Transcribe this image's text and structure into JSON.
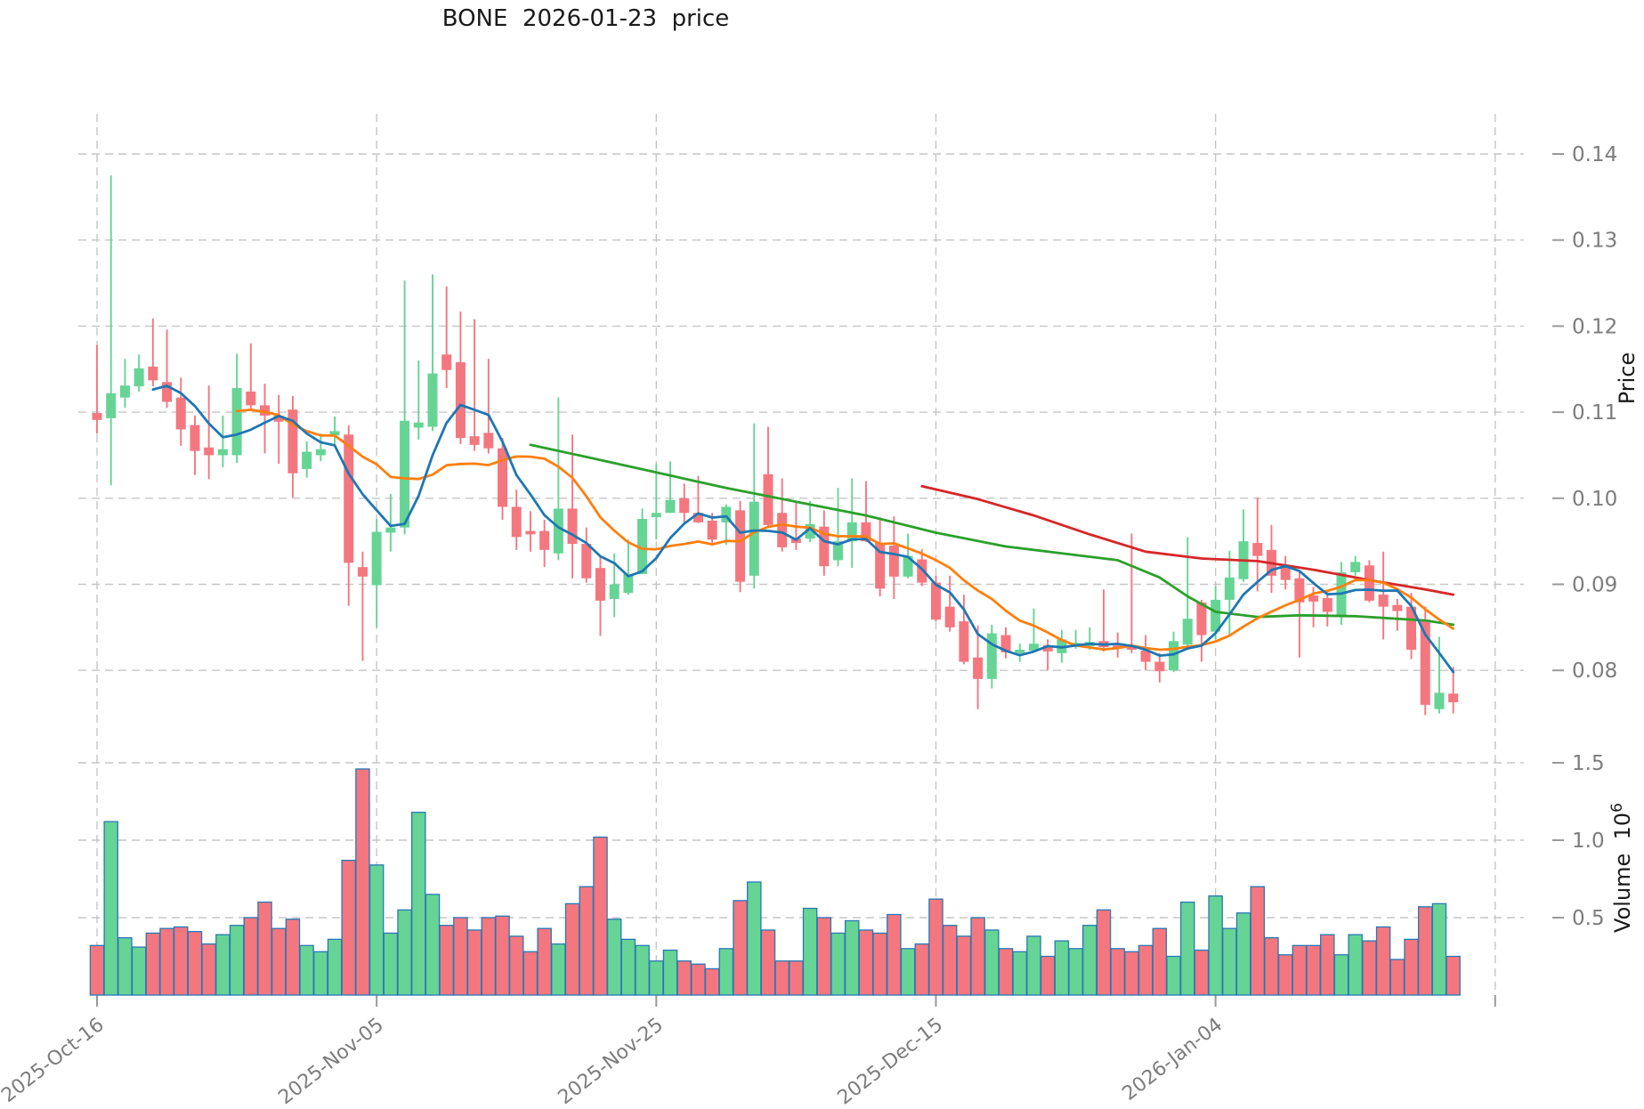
{
  "title": "BONE  2026-01-23  price",
  "axes": {
    "price_label": "Price",
    "volume_label_base": "Volume  10",
    "volume_label_exponent": "6",
    "price_ticks": [
      {
        "value": 0.14,
        "label": "0.14"
      },
      {
        "value": 0.13,
        "label": "0.13"
      },
      {
        "value": 0.12,
        "label": "0.12"
      },
      {
        "value": 0.11,
        "label": "0.11"
      },
      {
        "value": 0.1,
        "label": "0.10"
      },
      {
        "value": 0.09,
        "label": "0.09"
      },
      {
        "value": 0.08,
        "label": "0.08"
      }
    ],
    "volume_ticks": [
      {
        "value": 1.5,
        "label": "1.5"
      },
      {
        "value": 1.0,
        "label": "1.0"
      },
      {
        "value": 0.5,
        "label": "0.5"
      }
    ],
    "x_ticks": [
      {
        "index": 0,
        "label": "2025-Oct-16"
      },
      {
        "index": 20,
        "label": "2025-Nov-05"
      },
      {
        "index": 40,
        "label": "2025-Nov-25"
      },
      {
        "index": 60,
        "label": "2025-Dec-15"
      },
      {
        "index": 80,
        "label": "2026-Jan-04"
      },
      {
        "index": 100,
        "label": ""
      }
    ]
  },
  "colors": {
    "up": "#66d495",
    "down": "#f4777f",
    "volume_edge": "#2878b5",
    "ma_short": "#1f77b4",
    "ma_mid": "#ff7f0e",
    "ma_long": "#2ca02c",
    "ma_xlong": "#d62728",
    "grid": "#c6c6c6",
    "tick": "#9a9a9a",
    "tick_label": "#7c7c7c",
    "title": "#1a1a1a"
  },
  "chart_data": {
    "type": "candlestick",
    "panels": [
      "price",
      "volume"
    ],
    "grid": true,
    "price_ylim": [
      0.0736,
      0.145
    ],
    "volume_ylim": [
      0,
      1.6
    ],
    "volume_unit": "1e6",
    "n_bars": 98,
    "ohlc": {
      "open": [
        0.1099,
        0.1093,
        0.1117,
        0.113,
        0.1153,
        0.1135,
        0.1117,
        0.1085,
        0.1059,
        0.105,
        0.105,
        0.1124,
        0.1108,
        0.1096,
        0.1103,
        0.1034,
        0.105,
        0.1073,
        0.1074,
        0.092,
        0.0899,
        0.096,
        0.0966,
        0.1082,
        0.1083,
        0.1167,
        0.1158,
        0.1072,
        0.1076,
        0.1058,
        0.099,
        0.0962,
        0.0962,
        0.0936,
        0.0988,
        0.0947,
        0.0919,
        0.0883,
        0.089,
        0.0912,
        0.0978,
        0.0983,
        0.1,
        0.0983,
        0.0974,
        0.0972,
        0.0986,
        0.091,
        0.1028,
        0.0983,
        0.0953,
        0.0953,
        0.0967,
        0.0928,
        0.095,
        0.0972,
        0.0948,
        0.0945,
        0.0909,
        0.0929,
        0.0902,
        0.0874,
        0.0857,
        0.0815,
        0.079,
        0.0841,
        0.082,
        0.0823,
        0.0829,
        0.082,
        0.0828,
        0.0828,
        0.0834,
        0.0829,
        0.0828,
        0.0823,
        0.081,
        0.08,
        0.083,
        0.0879,
        0.0845,
        0.0882,
        0.0906,
        0.0948,
        0.094,
        0.0921,
        0.0907,
        0.0887,
        0.0884,
        0.0862,
        0.0914,
        0.0922,
        0.0888,
        0.0876,
        0.0874,
        0.0859,
        0.0755,
        0.0773
      ],
      "high": [
        0.1178,
        0.1375,
        0.1162,
        0.1167,
        0.1209,
        0.1196,
        0.114,
        0.1096,
        0.1131,
        0.1096,
        0.1168,
        0.118,
        0.1133,
        0.112,
        0.1119,
        0.1066,
        0.1075,
        0.1095,
        0.1085,
        0.0938,
        0.0976,
        0.1005,
        0.1253,
        0.116,
        0.126,
        0.1246,
        0.1217,
        0.1208,
        0.1162,
        0.107,
        0.101,
        0.0985,
        0.0975,
        0.1117,
        0.1074,
        0.0966,
        0.0933,
        0.0936,
        0.0952,
        0.0988,
        0.104,
        0.1043,
        0.1017,
        0.1026,
        0.0983,
        0.0993,
        0.0997,
        0.1087,
        0.1083,
        0.1023,
        0.0997,
        0.0997,
        0.0986,
        0.1012,
        0.1023,
        0.102,
        0.0978,
        0.0979,
        0.0959,
        0.0941,
        0.091,
        0.091,
        0.0888,
        0.0852,
        0.0853,
        0.085,
        0.0831,
        0.0872,
        0.0836,
        0.0847,
        0.0847,
        0.085,
        0.0894,
        0.0844,
        0.0959,
        0.0841,
        0.082,
        0.0845,
        0.0955,
        0.0882,
        0.0898,
        0.0939,
        0.0987,
        0.1001,
        0.0969,
        0.0933,
        0.0914,
        0.0897,
        0.0893,
        0.0926,
        0.0933,
        0.0928,
        0.0938,
        0.0883,
        0.089,
        0.0874,
        0.0839,
        0.0804
      ],
      "low": [
        0.1075,
        0.1015,
        0.1105,
        0.1124,
        0.113,
        0.1105,
        0.1061,
        0.1027,
        0.1022,
        0.1036,
        0.1041,
        0.1101,
        0.1052,
        0.104,
        0.1001,
        0.1024,
        0.1043,
        0.1062,
        0.0875,
        0.0811,
        0.085,
        0.0938,
        0.0958,
        0.1068,
        0.1078,
        0.1128,
        0.1063,
        0.1055,
        0.1052,
        0.0975,
        0.094,
        0.0938,
        0.092,
        0.0928,
        0.0907,
        0.0902,
        0.084,
        0.0862,
        0.0888,
        0.0912,
        0.0952,
        0.0983,
        0.0972,
        0.0971,
        0.0945,
        0.0946,
        0.0891,
        0.0895,
        0.0967,
        0.0938,
        0.094,
        0.0949,
        0.091,
        0.0921,
        0.0919,
        0.0949,
        0.0886,
        0.0883,
        0.0907,
        0.0898,
        0.0857,
        0.0845,
        0.0807,
        0.0755,
        0.0779,
        0.0814,
        0.081,
        0.0821,
        0.08,
        0.0809,
        0.0825,
        0.0824,
        0.0822,
        0.0815,
        0.082,
        0.08,
        0.0786,
        0.0798,
        0.0824,
        0.081,
        0.0836,
        0.0841,
        0.0903,
        0.0892,
        0.089,
        0.0894,
        0.0815,
        0.085,
        0.0851,
        0.0853,
        0.091,
        0.0879,
        0.0836,
        0.0846,
        0.0813,
        0.0748,
        0.075,
        0.075
      ],
      "close": [
        0.1091,
        0.1122,
        0.1131,
        0.1151,
        0.1137,
        0.1112,
        0.108,
        0.1055,
        0.105,
        0.1057,
        0.1128,
        0.1108,
        0.1096,
        0.1089,
        0.1029,
        0.1054,
        0.1057,
        0.1078,
        0.0925,
        0.0909,
        0.0961,
        0.0966,
        0.109,
        0.1088,
        0.1145,
        0.1149,
        0.107,
        0.1062,
        0.1058,
        0.099,
        0.0955,
        0.0958,
        0.094,
        0.0988,
        0.0947,
        0.0907,
        0.0881,
        0.09,
        0.0912,
        0.0976,
        0.0983,
        0.0998,
        0.0983,
        0.0972,
        0.0952,
        0.099,
        0.0903,
        0.0996,
        0.0969,
        0.0943,
        0.0948,
        0.097,
        0.0921,
        0.095,
        0.0972,
        0.095,
        0.0895,
        0.0909,
        0.0933,
        0.0902,
        0.0859,
        0.085,
        0.081,
        0.079,
        0.0843,
        0.0821,
        0.0824,
        0.0831,
        0.0822,
        0.0836,
        0.0832,
        0.0833,
        0.0827,
        0.0826,
        0.0824,
        0.081,
        0.0799,
        0.0834,
        0.086,
        0.0841,
        0.0882,
        0.0908,
        0.095,
        0.0933,
        0.091,
        0.0905,
        0.0879,
        0.088,
        0.0868,
        0.0914,
        0.0926,
        0.0881,
        0.0874,
        0.0869,
        0.0824,
        0.076,
        0.0774,
        0.0763
      ]
    },
    "volume": [
      0.32,
      1.12,
      0.37,
      0.31,
      0.4,
      0.43,
      0.44,
      0.41,
      0.33,
      0.39,
      0.45,
      0.5,
      0.6,
      0.43,
      0.49,
      0.32,
      0.28,
      0.36,
      0.87,
      1.46,
      0.84,
      0.4,
      0.55,
      1.18,
      0.65,
      0.45,
      0.5,
      0.42,
      0.5,
      0.51,
      0.38,
      0.28,
      0.43,
      0.33,
      0.59,
      0.7,
      1.02,
      0.49,
      0.36,
      0.32,
      0.22,
      0.29,
      0.22,
      0.2,
      0.17,
      0.3,
      0.61,
      0.73,
      0.42,
      0.22,
      0.22,
      0.56,
      0.5,
      0.4,
      0.48,
      0.42,
      0.4,
      0.52,
      0.3,
      0.33,
      0.62,
      0.45,
      0.38,
      0.5,
      0.42,
      0.3,
      0.28,
      0.38,
      0.25,
      0.35,
      0.3,
      0.45,
      0.55,
      0.3,
      0.28,
      0.32,
      0.43,
      0.25,
      0.6,
      0.29,
      0.64,
      0.43,
      0.53,
      0.7,
      0.37,
      0.26,
      0.32,
      0.32,
      0.39,
      0.26,
      0.39,
      0.35,
      0.44,
      0.23,
      0.36,
      0.57,
      0.59,
      0.25
    ],
    "moving_averages": [
      {
        "name": "ma-short-blue",
        "window": 5,
        "source": "computed"
      },
      {
        "name": "ma-mid-orange",
        "window": 11,
        "source": "computed"
      },
      {
        "name": "ma-long-green",
        "source": "traced",
        "points": [
          [
            31,
            0.1062
          ],
          [
            35,
            0.1048
          ],
          [
            40,
            0.103
          ],
          [
            45,
            0.1012
          ],
          [
            50,
            0.0996
          ],
          [
            55,
            0.098
          ],
          [
            60,
            0.096
          ],
          [
            65,
            0.0944
          ],
          [
            70,
            0.0934
          ],
          [
            73,
            0.0928
          ],
          [
            76,
            0.0908
          ],
          [
            78,
            0.0886
          ],
          [
            80,
            0.0868
          ],
          [
            83,
            0.0862
          ],
          [
            86,
            0.0864
          ],
          [
            90,
            0.0863
          ],
          [
            93,
            0.086
          ],
          [
            95,
            0.0858
          ],
          [
            97,
            0.0853
          ]
        ]
      },
      {
        "name": "ma-xlong-red",
        "source": "traced",
        "points": [
          [
            59,
            0.1014
          ],
          [
            63,
            0.0999
          ],
          [
            67,
            0.098
          ],
          [
            71,
            0.0958
          ],
          [
            75,
            0.0938
          ],
          [
            79,
            0.093
          ],
          [
            83,
            0.0927
          ],
          [
            87,
            0.0917
          ],
          [
            91,
            0.0905
          ],
          [
            95,
            0.0894
          ],
          [
            97,
            0.0888
          ]
        ]
      }
    ]
  }
}
